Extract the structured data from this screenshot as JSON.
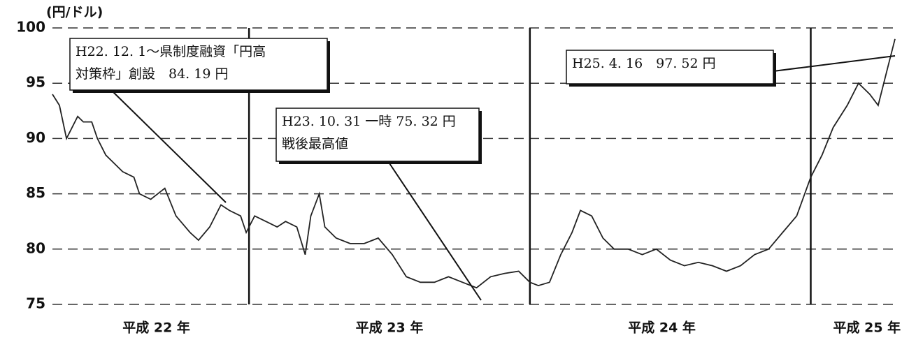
{
  "chart_data": {
    "type": "line",
    "y_label": "(円/ドル)",
    "x": [
      22.3,
      22.325,
      22.35,
      22.39,
      22.41,
      22.44,
      22.46,
      22.49,
      22.51,
      22.55,
      22.59,
      22.61,
      22.65,
      22.7,
      22.74,
      22.79,
      22.82,
      22.86,
      22.9,
      22.93,
      22.97,
      22.99,
      23.02,
      23.06,
      23.1,
      23.13,
      23.17,
      23.2,
      23.22,
      23.25,
      23.27,
      23.31,
      23.36,
      23.41,
      23.46,
      23.51,
      23.56,
      23.61,
      23.66,
      23.71,
      23.76,
      23.81,
      23.86,
      23.91,
      23.96,
      24.0,
      24.03,
      24.07,
      24.11,
      24.15,
      24.18,
      24.22,
      24.26,
      24.3,
      24.35,
      24.4,
      24.45,
      24.5,
      24.55,
      24.6,
      24.65,
      24.7,
      24.75,
      24.8,
      24.85,
      24.9,
      24.95,
      25.0,
      25.04,
      25.08,
      25.13,
      25.17,
      25.21,
      25.24,
      25.27,
      25.3
    ],
    "values": [
      94,
      93,
      90,
      92,
      91.5,
      91.5,
      90,
      88.5,
      88,
      87,
      86.5,
      85,
      84.5,
      85.5,
      83,
      81.5,
      80.8,
      82,
      84,
      83.5,
      83,
      81.5,
      83,
      82.5,
      82,
      82.5,
      82,
      79.5,
      83,
      85,
      82,
      81,
      80.5,
      80.5,
      81,
      79.5,
      77.5,
      77,
      77,
      77.5,
      77,
      76.5,
      77.5,
      77.8,
      78,
      77,
      76.7,
      77,
      79.5,
      81.5,
      83.5,
      83,
      81,
      80,
      80,
      79.5,
      80,
      79,
      78.5,
      78.8,
      78.5,
      78,
      78.5,
      79.5,
      80,
      81.5,
      83,
      86.5,
      88.5,
      91,
      93,
      95,
      94,
      93,
      96,
      99
    ],
    "color": "#222",
    "xlim": [
      22.3,
      25.3
    ],
    "xticks": [
      {
        "value": 22.67,
        "label": "平成 22 年"
      },
      {
        "value": 23.5,
        "label": "平成 23 年"
      },
      {
        "value": 24.47,
        "label": "平成 24 年"
      },
      {
        "value": 25.2,
        "label": "平成 25 年"
      }
    ],
    "ylim": [
      75,
      100
    ],
    "yticks": [
      75,
      80,
      85,
      90,
      95,
      100
    ],
    "grid": true,
    "annotations": [
      {
        "lines": [
          "H22. 12. 1～県制度融資「円高",
          "対策枠」創設　84. 19 円"
        ]
      },
      {
        "lines": [
          "H23. 10. 31 一時 75. 32 円",
          "戦後最高値"
        ]
      },
      {
        "lines": [
          "H25. 4. 16　97. 52 円"
        ]
      }
    ]
  }
}
